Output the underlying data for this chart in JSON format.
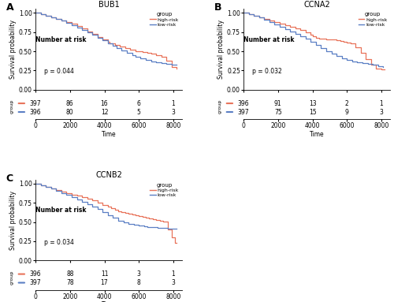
{
  "panels": [
    {
      "label": "A",
      "title": "BUB1",
      "pvalue": "p = 0.044",
      "high_risk": {
        "time": [
          0,
          300,
          600,
          900,
          1200,
          1500,
          1800,
          2100,
          2400,
          2700,
          3000,
          3300,
          3600,
          3900,
          4200,
          4300,
          4600,
          4900,
          5200,
          5500,
          5800,
          6000,
          6200,
          6500,
          6700,
          7000,
          7300,
          7600,
          7900,
          8200
        ],
        "surv": [
          1.0,
          0.98,
          0.96,
          0.94,
          0.92,
          0.9,
          0.88,
          0.86,
          0.83,
          0.8,
          0.76,
          0.73,
          0.69,
          0.65,
          0.62,
          0.6,
          0.58,
          0.56,
          0.54,
          0.52,
          0.5,
          0.5,
          0.49,
          0.48,
          0.47,
          0.45,
          0.43,
          0.38,
          0.3,
          0.28
        ]
      },
      "low_risk": {
        "time": [
          0,
          300,
          600,
          900,
          1200,
          1500,
          1800,
          2100,
          2400,
          2700,
          3000,
          3300,
          3600,
          3900,
          4200,
          4500,
          4700,
          5000,
          5300,
          5600,
          5800,
          6100,
          6400,
          6700,
          7000,
          7300,
          7600,
          7900,
          8200
        ],
        "surv": [
          1.0,
          0.98,
          0.96,
          0.94,
          0.92,
          0.9,
          0.87,
          0.84,
          0.81,
          0.78,
          0.75,
          0.72,
          0.68,
          0.64,
          0.6,
          0.57,
          0.54,
          0.51,
          0.48,
          0.45,
          0.43,
          0.41,
          0.39,
          0.37,
          0.36,
          0.35,
          0.34,
          0.33,
          0.33
        ]
      },
      "risk_table": {
        "times": [
          0,
          2000,
          4000,
          6000,
          8000
        ],
        "high_risk_n": [
          397,
          86,
          16,
          6,
          1
        ],
        "low_risk_n": [
          396,
          80,
          12,
          5,
          3
        ]
      }
    },
    {
      "label": "B",
      "title": "CCNA2",
      "pvalue": "p = 0.032",
      "high_risk": {
        "time": [
          0,
          300,
          600,
          900,
          1200,
          1500,
          1800,
          2100,
          2400,
          2700,
          3000,
          3300,
          3600,
          3900,
          4000,
          4200,
          4400,
          4600,
          4800,
          5000,
          5200,
          5400,
          5600,
          5800,
          6000,
          6200,
          6500,
          6800,
          7100,
          7400,
          7700,
          8000,
          8200
        ],
        "surv": [
          1.0,
          0.98,
          0.96,
          0.94,
          0.92,
          0.9,
          0.88,
          0.86,
          0.84,
          0.82,
          0.8,
          0.78,
          0.75,
          0.72,
          0.7,
          0.68,
          0.67,
          0.66,
          0.65,
          0.65,
          0.65,
          0.64,
          0.63,
          0.62,
          0.61,
          0.6,
          0.55,
          0.48,
          0.4,
          0.33,
          0.28,
          0.27,
          0.27
        ]
      },
      "low_risk": {
        "time": [
          0,
          300,
          600,
          900,
          1200,
          1500,
          1800,
          2100,
          2400,
          2700,
          3000,
          3300,
          3600,
          3900,
          4200,
          4500,
          4800,
          5100,
          5400,
          5700,
          6000,
          6300,
          6600,
          6900,
          7200,
          7500,
          7800,
          8100
        ],
        "surv": [
          1.0,
          0.98,
          0.96,
          0.94,
          0.91,
          0.88,
          0.85,
          0.82,
          0.79,
          0.76,
          0.73,
          0.7,
          0.66,
          0.62,
          0.58,
          0.54,
          0.5,
          0.47,
          0.44,
          0.41,
          0.39,
          0.37,
          0.36,
          0.35,
          0.34,
          0.33,
          0.31,
          0.3
        ]
      },
      "risk_table": {
        "times": [
          0,
          2000,
          4000,
          6000,
          8000
        ],
        "high_risk_n": [
          396,
          91,
          13,
          2,
          1
        ],
        "low_risk_n": [
          397,
          75,
          15,
          9,
          3
        ]
      }
    },
    {
      "label": "C",
      "title": "CCNB2",
      "pvalue": "p = 0.034",
      "high_risk": {
        "time": [
          0,
          300,
          600,
          900,
          1200,
          1500,
          1800,
          2100,
          2400,
          2700,
          3000,
          3300,
          3600,
          3900,
          4200,
          4400,
          4600,
          4800,
          5000,
          5200,
          5400,
          5600,
          5800,
          6000,
          6200,
          6400,
          6600,
          6800,
          7000,
          7200,
          7400,
          7700,
          7900,
          8100,
          8200
        ],
        "surv": [
          1.0,
          0.98,
          0.96,
          0.94,
          0.92,
          0.9,
          0.88,
          0.86,
          0.84,
          0.82,
          0.8,
          0.78,
          0.75,
          0.72,
          0.7,
          0.68,
          0.66,
          0.64,
          0.63,
          0.62,
          0.61,
          0.6,
          0.59,
          0.58,
          0.57,
          0.56,
          0.55,
          0.54,
          0.53,
          0.52,
          0.51,
          0.4,
          0.3,
          0.23,
          0.23
        ]
      },
      "low_risk": {
        "time": [
          0,
          300,
          600,
          900,
          1200,
          1500,
          1800,
          2100,
          2400,
          2700,
          3000,
          3300,
          3600,
          3900,
          4200,
          4500,
          4800,
          5100,
          5400,
          5700,
          6000,
          6300,
          6500,
          6700,
          6900,
          7100,
          7300,
          7500,
          7700,
          7900,
          8100,
          8200
        ],
        "surv": [
          1.0,
          0.98,
          0.96,
          0.94,
          0.91,
          0.88,
          0.85,
          0.82,
          0.79,
          0.76,
          0.73,
          0.7,
          0.67,
          0.63,
          0.59,
          0.56,
          0.52,
          0.5,
          0.48,
          0.46,
          0.45,
          0.44,
          0.43,
          0.43,
          0.43,
          0.42,
          0.42,
          0.42,
          0.41,
          0.41,
          0.41,
          0.41
        ]
      },
      "risk_table": {
        "times": [
          0,
          2000,
          4000,
          6000,
          8000
        ],
        "high_risk_n": [
          396,
          88,
          11,
          3,
          1
        ],
        "low_risk_n": [
          397,
          78,
          17,
          8,
          3
        ]
      }
    }
  ],
  "high_risk_color": "#E8735A",
  "low_risk_color": "#5B7FC4",
  "bg_color": "#FFFFFF",
  "xlim": [
    0,
    8500
  ],
  "ylim": [
    0.0,
    1.05
  ],
  "xticks": [
    0,
    2000,
    4000,
    6000,
    8000
  ],
  "yticks": [
    0.0,
    0.25,
    0.5,
    0.75,
    1.0
  ],
  "xlabel": "Time",
  "ylabel": "Survival probability",
  "legend_title": "group",
  "legend_high": "high-risk",
  "legend_low": "low-risk"
}
